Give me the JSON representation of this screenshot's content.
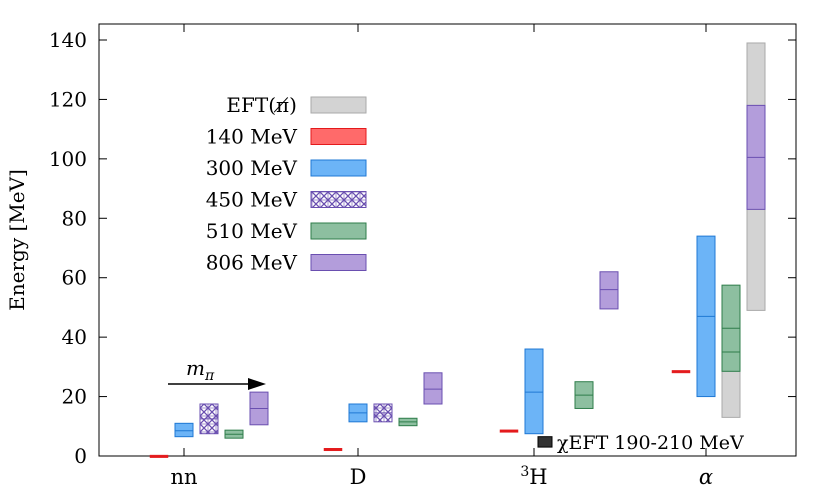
{
  "chart_data": {
    "type": "floating-bar",
    "ylabel": "Energy [MeV]",
    "ylim": [
      0,
      145
    ],
    "yticks": [
      0,
      20,
      40,
      60,
      80,
      100,
      120,
      140
    ],
    "categories": [
      "nn",
      "D",
      "³H",
      "α"
    ],
    "series": [
      {
        "name": "EFT(π̸)",
        "color": "#d3d3d3",
        "stroke": "#a9a9a9",
        "pattern": "solid",
        "boxes": [
          {
            "category": "α",
            "offset": 0,
            "low": 20.5,
            "high": 29.5,
            "mid": 25
          },
          {
            "category": "α",
            "offset": 1,
            "low": 13,
            "high": 50,
            "mid": 33
          },
          {
            "category": "α",
            "offset": 2,
            "low": 49,
            "high": 139,
            "mid": 94
          }
        ]
      },
      {
        "name": "140 MeV",
        "color": "#ff6a6a",
        "stroke": "#e41a1c",
        "pattern": "solid",
        "boxes": [
          {
            "category": "nn",
            "offset": -1,
            "low": -0.3,
            "high": 0.3,
            "mid": 0
          },
          {
            "category": "D",
            "offset": -1,
            "low": 2.0,
            "high": 2.6,
            "mid": 2.2
          },
          {
            "category": "³H",
            "offset": -1,
            "low": 8.2,
            "high": 8.8,
            "mid": 8.5
          },
          {
            "category": "α",
            "offset": -1,
            "low": 28.0,
            "high": 28.8,
            "mid": 28.3
          }
        ]
      },
      {
        "name": "300 MeV",
        "color": "#6cb4f7",
        "stroke": "#1f78d4",
        "pattern": "solid",
        "boxes": [
          {
            "category": "nn",
            "offset": 0,
            "low": 6.5,
            "high": 11,
            "mid": 8.5
          },
          {
            "category": "D",
            "offset": 0,
            "low": 11.5,
            "high": 17.5,
            "mid": 14.5
          },
          {
            "category": "³H",
            "offset": 0,
            "low": 7.5,
            "high": 36,
            "mid": 21.5
          },
          {
            "category": "α",
            "offset": 0,
            "low": 20,
            "high": 74,
            "mid": 47
          }
        ]
      },
      {
        "name": "450 MeV",
        "color": "#7b5cc4",
        "stroke": "#6a4fb0",
        "pattern": "hatch",
        "boxes": [
          {
            "category": "nn",
            "offset": 1,
            "low": 7.5,
            "high": 17.5,
            "mid": 12.5
          },
          {
            "category": "D",
            "offset": 1,
            "low": 11.5,
            "high": 17.5,
            "mid": 14.5
          }
        ]
      },
      {
        "name": "510 MeV",
        "color": "#8dbfa0",
        "stroke": "#2e7d4a",
        "pattern": "solid",
        "boxes": [
          {
            "category": "nn",
            "offset": 2,
            "low": 6,
            "high": 8.7,
            "mid": 7.3
          },
          {
            "category": "D",
            "offset": 2,
            "low": 10.2,
            "high": 12.7,
            "mid": 11.5
          },
          {
            "category": "³H",
            "offset": 2,
            "low": 16,
            "high": 25,
            "mid": 20.5
          },
          {
            "category": "α",
            "offset": 1,
            "low": 28.5,
            "high": 57.5,
            "mid": 43
          },
          {
            "category": "α",
            "offset": 1,
            "low": 35,
            "high": 35,
            "mid": 35
          }
        ]
      },
      {
        "name": "806 MeV",
        "color": "#b39ddb",
        "stroke": "#6a4fb0",
        "pattern": "solid",
        "boxes": [
          {
            "category": "nn",
            "offset": 3,
            "low": 10.5,
            "high": 21.5,
            "mid": 16
          },
          {
            "category": "D",
            "offset": 3,
            "low": 17.5,
            "high": 28,
            "mid": 22.5
          },
          {
            "category": "³H",
            "offset": 3,
            "low": 49.5,
            "high": 62,
            "mid": 56
          },
          {
            "category": "α",
            "offset": 2,
            "low": 83,
            "high": 118,
            "mid": 100.5
          }
        ]
      }
    ],
    "annotations": {
      "mpi_label": "m_π",
      "chi_eft_label": "χEFT 190-210 MeV",
      "chi_eft_box": {
        "low": 3,
        "high": 6.5
      }
    }
  }
}
